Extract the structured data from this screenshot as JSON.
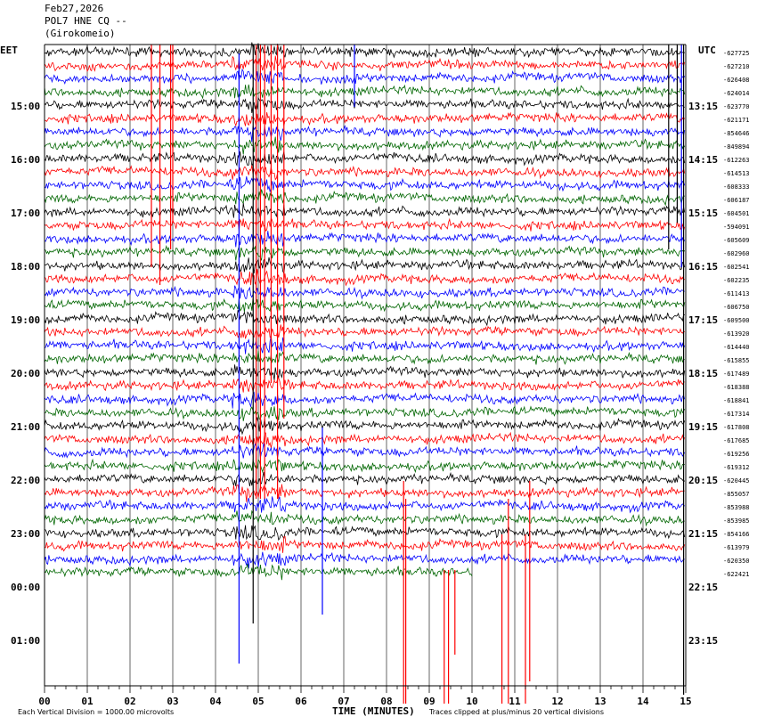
{
  "header": {
    "date": "Feb27,2026",
    "station": "POL7 HNE CQ --",
    "location": "(Girokomeio)"
  },
  "corner_left": "EET",
  "corner_right": "UTC",
  "footer": {
    "left": "Each Vertical Division = 1000.00 microvolts",
    "center": "TIME (MINUTES)",
    "right": "Traces clipped at plus/minus 20 vertical divisions"
  },
  "colors": {
    "trace_cycle": [
      "#000000",
      "#ff0000",
      "#0000ff",
      "#006600"
    ],
    "grid": "#000000"
  },
  "chart_data": {
    "type": "line",
    "subtype": "helicorder",
    "xlabel": "TIME (MINUTES)",
    "xlim": [
      0,
      15
    ],
    "x_ticks": [
      "00",
      "01",
      "02",
      "03",
      "04",
      "05",
      "06",
      "07",
      "08",
      "09",
      "10",
      "11",
      "12",
      "13",
      "14",
      "15"
    ],
    "left_time_labels": [
      "15:00",
      "16:00",
      "17:00",
      "18:00",
      "19:00",
      "20:00",
      "21:00",
      "22:00",
      "23:00",
      "00:00",
      "01:00"
    ],
    "right_time_labels": [
      "13:15",
      "14:15",
      "15:15",
      "16:15",
      "17:15",
      "18:15",
      "19:15",
      "20:15",
      "21:15",
      "22:15",
      "23:15"
    ],
    "trace_offsets": [
      "-627725",
      "-627210",
      "-626408",
      "-624014",
      "-623770",
      "-621171",
      "-854646",
      "-849894",
      "-612263",
      "-614513",
      "-608333",
      "-606187",
      "-604501",
      "-594091",
      "-605609",
      "-602960",
      "-602541",
      "-602235",
      "-611413",
      "-606750",
      "-609500",
      "-613920",
      "-614440",
      "-615855",
      "-617489",
      "-618388",
      "-618841",
      "-617314",
      "-617808",
      "-617685",
      "-619256",
      "-619312",
      "-620445",
      "-855057",
      "-853988",
      "-853985",
      "-854166",
      "-613979",
      "-620350",
      "-622421"
    ],
    "num_traces": 40,
    "last_trace_end_minute": 10.0,
    "vertical_division_microvolts": 1000.0,
    "clip_divisions": 20
  }
}
